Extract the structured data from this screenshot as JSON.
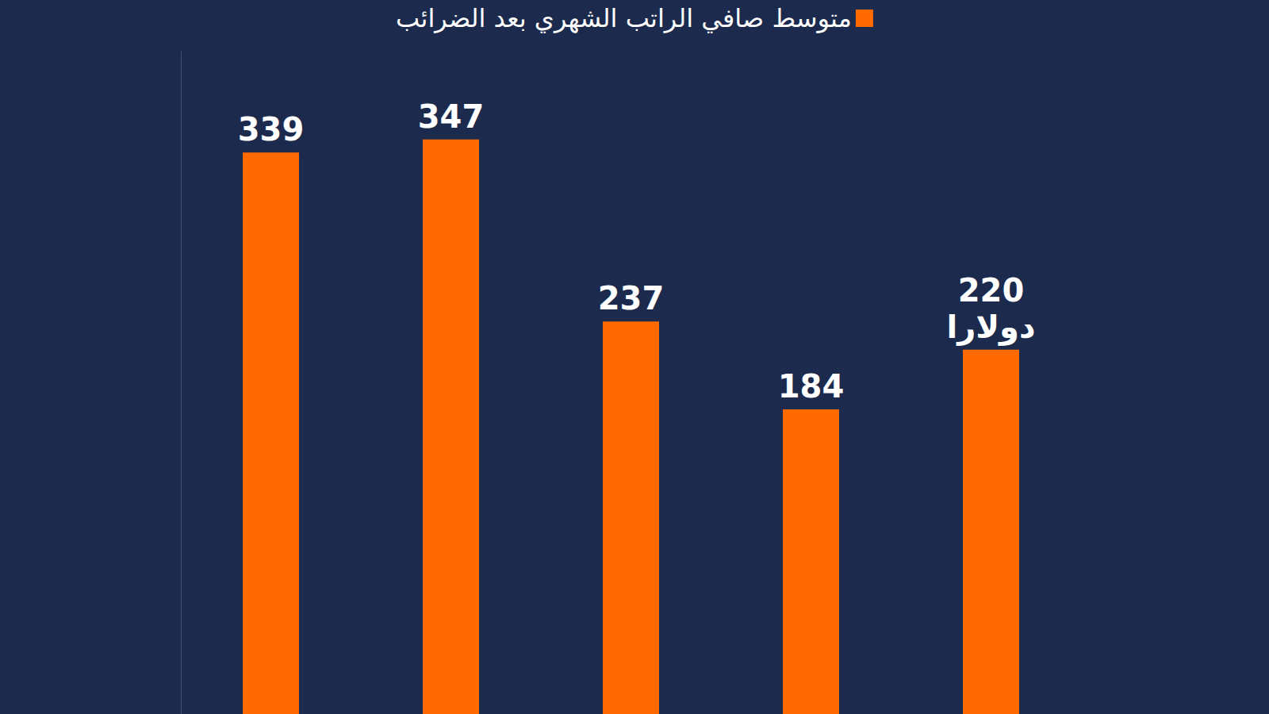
{
  "chart_data": {
    "type": "bar",
    "categories": [
      null,
      null,
      null,
      null,
      null
    ],
    "series": [
      {
        "name": "متوسط صافي الراتب الشهري بعد الضرائب",
        "color": "#ff6a00",
        "values": [
          339,
          347,
          237,
          184,
          220
        ],
        "value_labels": [
          "339",
          "347",
          "237",
          "184",
          "220\nدولارا"
        ]
      }
    ],
    "ylim": [
      0,
      400
    ],
    "grid": false,
    "legend": "top",
    "data_labels": true,
    "tick_labels": false
  }
}
